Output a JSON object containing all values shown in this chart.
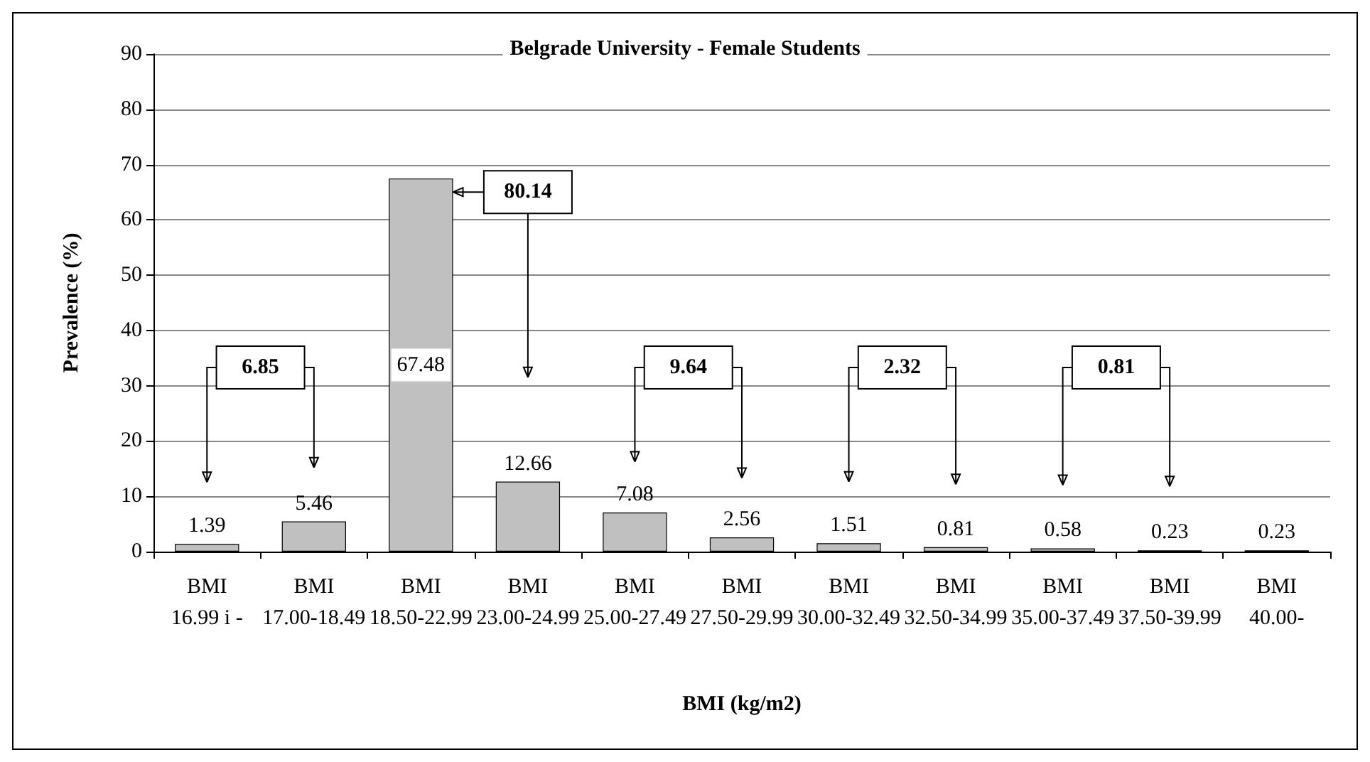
{
  "chart_data": {
    "type": "bar",
    "title": "Belgrade University - Female Students",
    "xlabel": "BMI (kg/m2)",
    "ylabel": "Prevalence (%)",
    "categories": [
      "BMI 16.99 i -",
      "BMI 17.00-18.49",
      "BMI 18.50-22.99",
      "BMI 23.00-24.99",
      "BMI 25.00-27.49",
      "BMI 27.50-29.99",
      "BMI 30.00-32.49",
      "BMI 32.50-34.99",
      "BMI 35.00-37.49",
      "BMI 37.50-39.99",
      "BMI 40.00-"
    ],
    "values": [
      1.39,
      5.46,
      67.48,
      12.66,
      7.08,
      2.56,
      1.51,
      0.81,
      0.58,
      0.23,
      0.23
    ],
    "color": "#c0c0c0",
    "ylim": [
      0,
      90
    ],
    "yticks": [
      0,
      10,
      20,
      30,
      40,
      50,
      60,
      70,
      80,
      90
    ],
    "grid": "y",
    "data_labels": true,
    "annotations": [
      "6.85",
      "80.14",
      "9.64",
      "2.32",
      "0.81"
    ]
  }
}
